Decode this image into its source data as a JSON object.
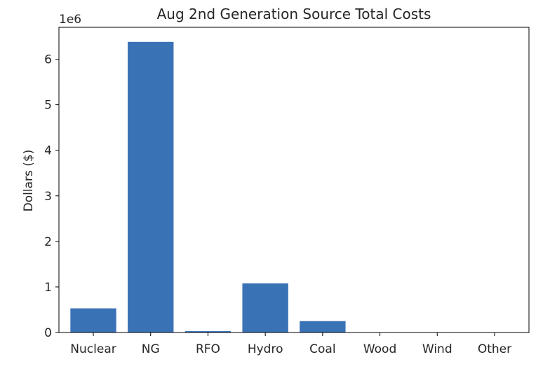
{
  "chart_data": {
    "type": "bar",
    "title": "Aug 2nd Generation Source Total Costs",
    "xlabel": "",
    "ylabel": "Dollars ($)",
    "y_multiplier_label": "1e6",
    "categories": [
      "Nuclear",
      "NG",
      "RFO",
      "Hydro",
      "Coal",
      "Wood",
      "Wind",
      "Other"
    ],
    "values": [
      530000,
      6380000,
      30000,
      1080000,
      250000,
      0,
      0,
      0
    ],
    "ylim": [
      0,
      6700000
    ],
    "yticks": [
      0,
      1000000,
      2000000,
      3000000,
      4000000,
      5000000,
      6000000
    ],
    "ytick_labels": [
      "0",
      "1",
      "2",
      "3",
      "4",
      "5",
      "6"
    ],
    "grid": false,
    "bar_color": "#3a72b6"
  }
}
